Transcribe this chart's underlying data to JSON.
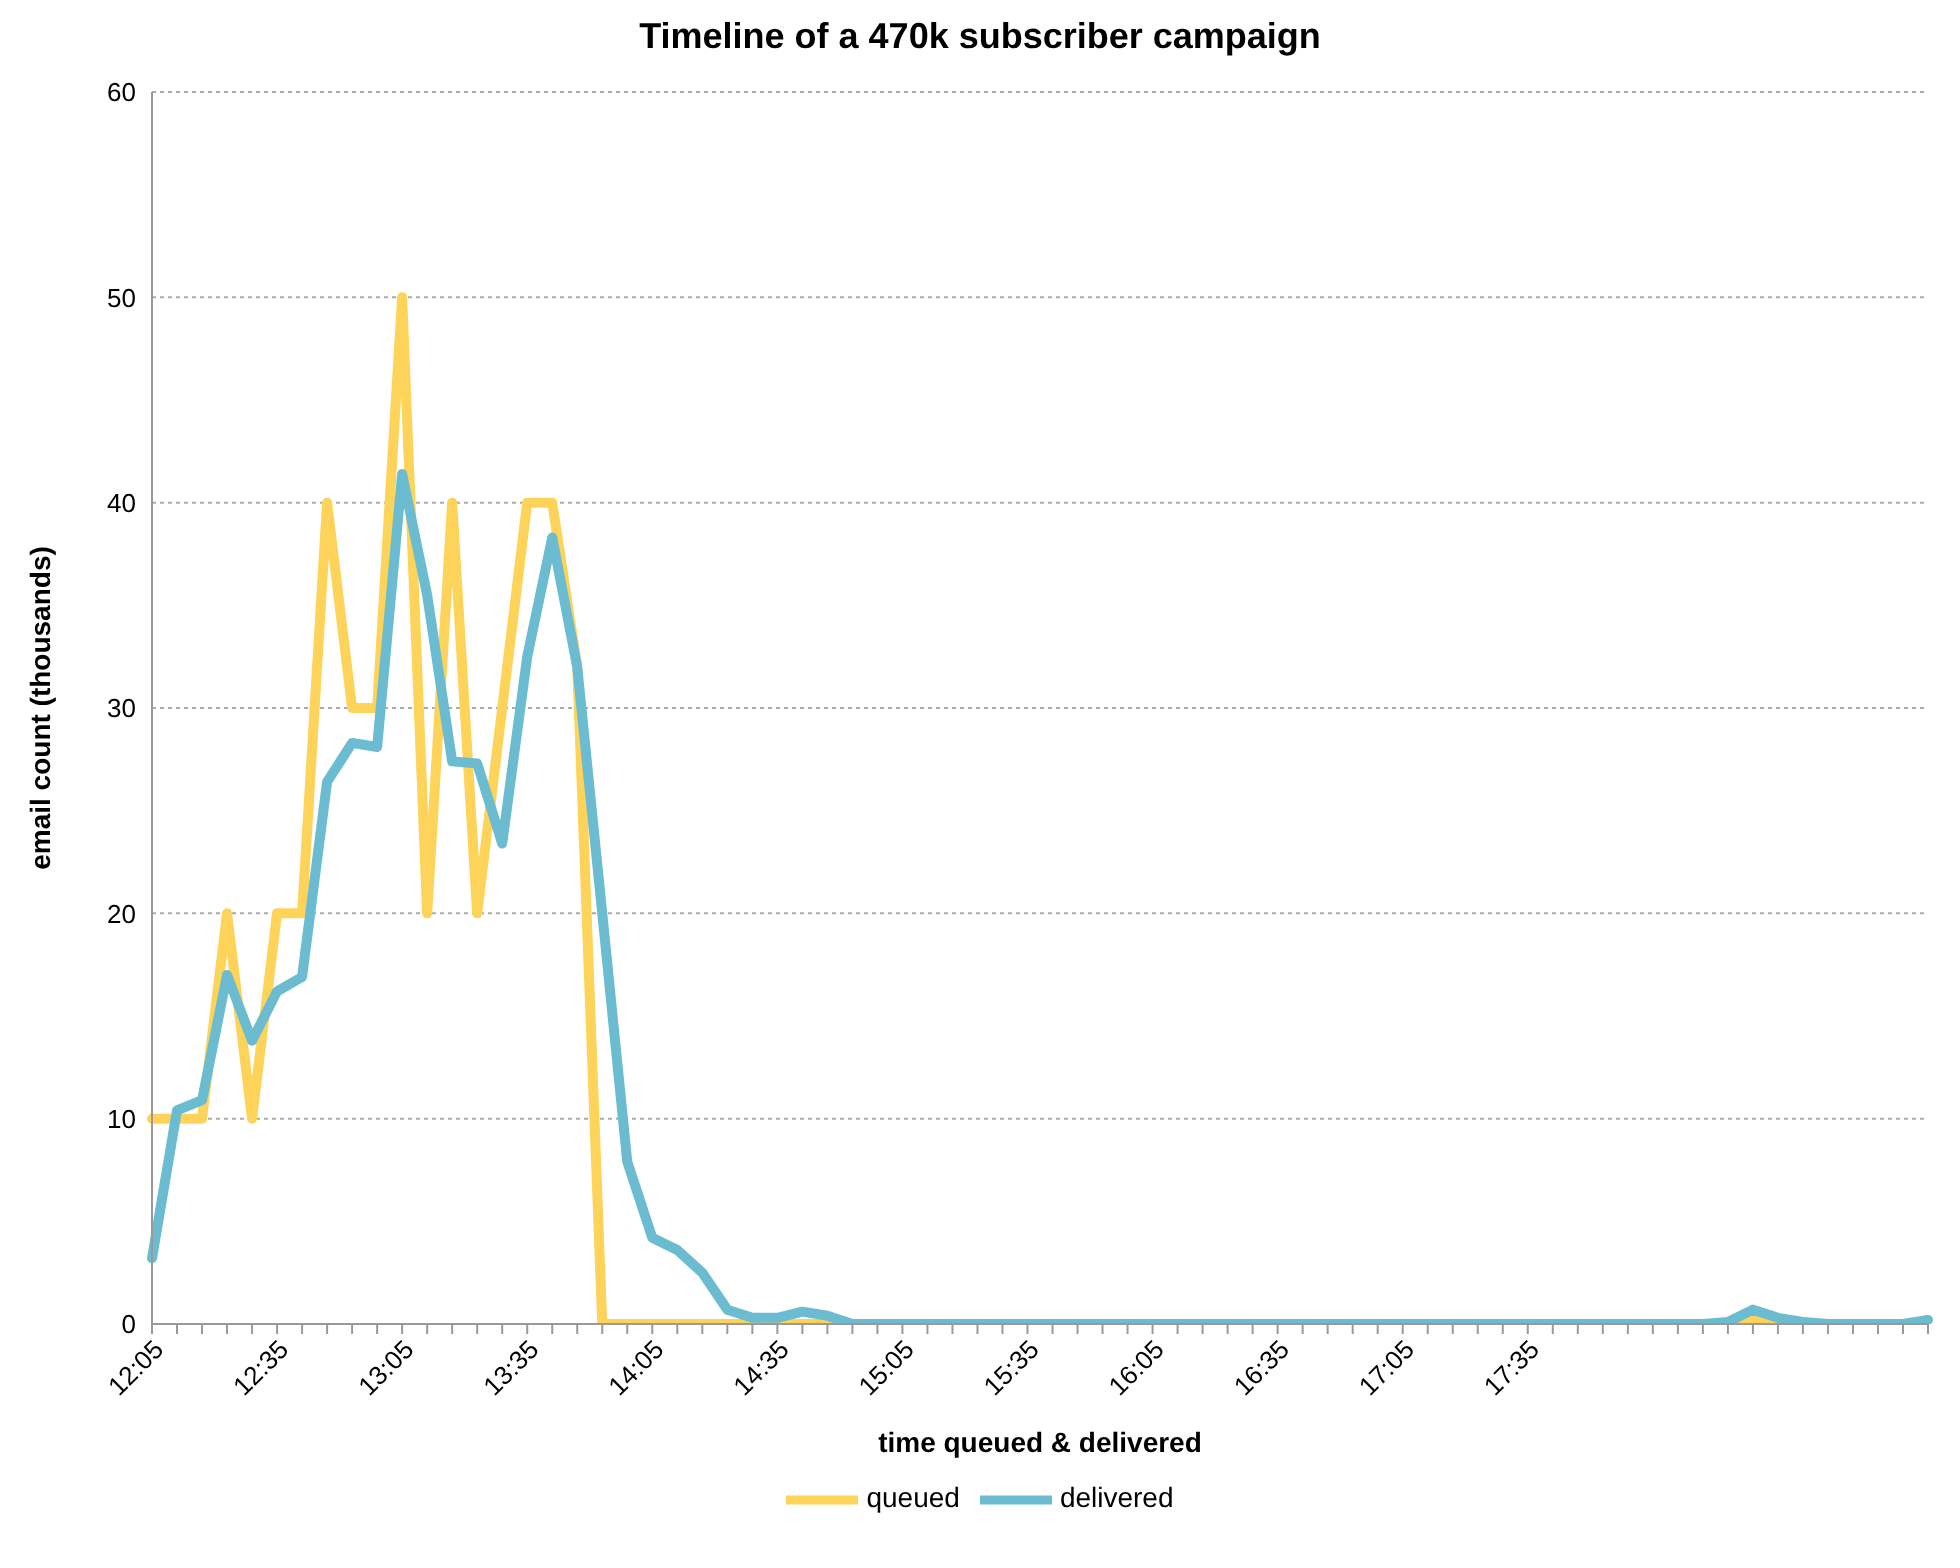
{
  "chart_data": {
    "type": "line",
    "title": "Timeline of a 470k subscriber campaign",
    "xlabel": "time queued & delivered",
    "ylabel": "email count (thousands)",
    "categories": [
      "12:05",
      null,
      null,
      null,
      null,
      "12:35",
      null,
      null,
      null,
      null,
      "13:05",
      null,
      null,
      null,
      null,
      "13:35",
      null,
      null,
      null,
      null,
      "14:05",
      null,
      null,
      null,
      null,
      "14:35",
      null,
      null,
      null,
      null,
      "15:05",
      null,
      null,
      null,
      null,
      "15:35",
      null,
      null,
      null,
      null,
      "16:05",
      null,
      null,
      null,
      null,
      "16:35",
      null,
      null,
      null,
      null,
      "17:05",
      null,
      null,
      null,
      null,
      "17:35",
      null,
      null,
      null,
      null,
      null,
      null,
      null,
      null,
      null,
      null,
      null,
      null,
      null,
      null,
      null,
      null
    ],
    "series": [
      {
        "name": "queued",
        "color": "#fdd35a",
        "values": [
          10,
          10,
          10,
          20,
          10,
          20,
          20,
          40,
          30,
          30,
          50,
          20,
          40,
          20,
          30,
          40,
          40,
          32,
          0,
          0,
          0,
          0,
          0,
          0,
          0,
          0,
          0,
          0,
          0,
          null,
          null,
          null,
          null,
          null,
          null,
          null,
          null,
          null,
          null,
          null,
          null,
          null,
          null,
          null,
          null,
          null,
          null,
          null,
          null,
          null,
          null,
          null,
          null,
          null,
          null,
          null,
          null,
          null,
          null,
          null,
          null,
          null,
          null,
          0,
          0.3,
          0,
          0,
          null,
          null,
          null,
          null,
          null
        ]
      },
      {
        "name": "delivered",
        "color": "#6bbcd1",
        "values": [
          3.2,
          10.4,
          10.9,
          17,
          13.8,
          16.2,
          16.9,
          26.4,
          28.3,
          28.1,
          41.4,
          35.5,
          27.4,
          27.3,
          23.4,
          32.5,
          38.3,
          32,
          20,
          7.9,
          4.2,
          3.6,
          2.5,
          0.7,
          0.3,
          0.3,
          0.6,
          0.4,
          0,
          0,
          0,
          0,
          0,
          0,
          0,
          0,
          0,
          0,
          0,
          0,
          0,
          0,
          0,
          0,
          0,
          0,
          0,
          0,
          0,
          0,
          0,
          0,
          0,
          0,
          0,
          0,
          0,
          0,
          0,
          0,
          0,
          0,
          0,
          0.1,
          0.7,
          0.3,
          0.1,
          0,
          0,
          0,
          0,
          0.2
        ]
      }
    ],
    "ylim": [
      0,
      60
    ],
    "yticks": [
      0,
      10,
      20,
      30,
      40,
      50,
      60
    ],
    "grid": "y",
    "legend": "bottom",
    "marker": "none",
    "line_style": "solid"
  }
}
